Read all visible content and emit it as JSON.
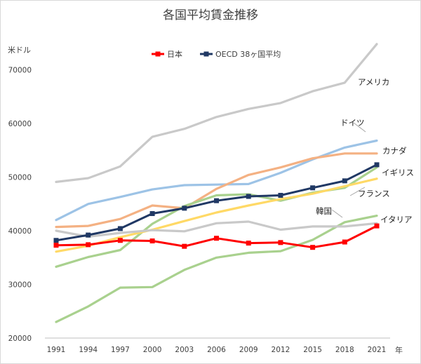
{
  "chart_data": {
    "type": "line",
    "title": "各国平均賃金推移",
    "ylabel": "米ドル",
    "xlabel": "年",
    "ylim": [
      20000,
      75000
    ],
    "yticks": [
      "20000",
      "30000",
      "40000",
      "50000",
      "60000",
      "70000"
    ],
    "categories": [
      "1991",
      "1994",
      "1997",
      "2000",
      "2003",
      "2006",
      "2009",
      "2012",
      "2015",
      "2018",
      "2021"
    ],
    "grid": false,
    "legend_position": "top",
    "series": [
      {
        "name": "アメリカ",
        "color": "#c9c9c9",
        "legend": false,
        "labeled": true,
        "values": [
          49100,
          49800,
          52000,
          57500,
          59000,
          61200,
          62700,
          63800,
          66000,
          67600,
          74800
        ]
      },
      {
        "name": "ドイツ",
        "color": "#9dc3e6",
        "legend": false,
        "labeled": true,
        "values": [
          42000,
          45000,
          46300,
          47700,
          48500,
          48600,
          48700,
          50800,
          53300,
          55500,
          56800
        ]
      },
      {
        "name": "カナダ",
        "color": "#f4b183",
        "legend": false,
        "labeled": true,
        "values": [
          40700,
          40900,
          42200,
          44700,
          44200,
          47800,
          50400,
          51800,
          53500,
          54400,
          54400
        ]
      },
      {
        "name": "イギリス",
        "color": "#a9d18e",
        "legend": false,
        "labeled": true,
        "values": [
          33300,
          35100,
          36400,
          41300,
          44600,
          46600,
          46800,
          45600,
          47100,
          48000,
          51800
        ]
      },
      {
        "name": "フランス",
        "color": "#ffd966",
        "legend": false,
        "labeled": true,
        "values": [
          36100,
          37200,
          38800,
          40200,
          41800,
          43400,
          44700,
          45900,
          46900,
          48300,
          49700
        ]
      },
      {
        "name": "韓国",
        "color": "#a9d18e",
        "legend": false,
        "labeled": true,
        "values": [
          23000,
          25900,
          29400,
          29500,
          32700,
          35000,
          35900,
          36200,
          38300,
          41600,
          42800
        ]
      },
      {
        "name": "イタリア",
        "color": "#c9c9c9",
        "legend": false,
        "labeled": true,
        "values": [
          40000,
          38900,
          39600,
          40100,
          39900,
          41400,
          41700,
          40200,
          40800,
          40800,
          41400
        ]
      },
      {
        "name": "OECD 38ヶ国平均",
        "color": "#203864",
        "legend": true,
        "labeled": false,
        "marker": true,
        "values": [
          38200,
          39200,
          40400,
          43200,
          44200,
          45600,
          46400,
          46600,
          48000,
          49300,
          52300
        ]
      },
      {
        "name": "日本",
        "color": "#ff0000",
        "legend": true,
        "labeled": false,
        "marker": true,
        "values": [
          37300,
          37400,
          38200,
          38100,
          37100,
          38600,
          37700,
          37800,
          36900,
          37900,
          40900
        ]
      }
    ]
  }
}
